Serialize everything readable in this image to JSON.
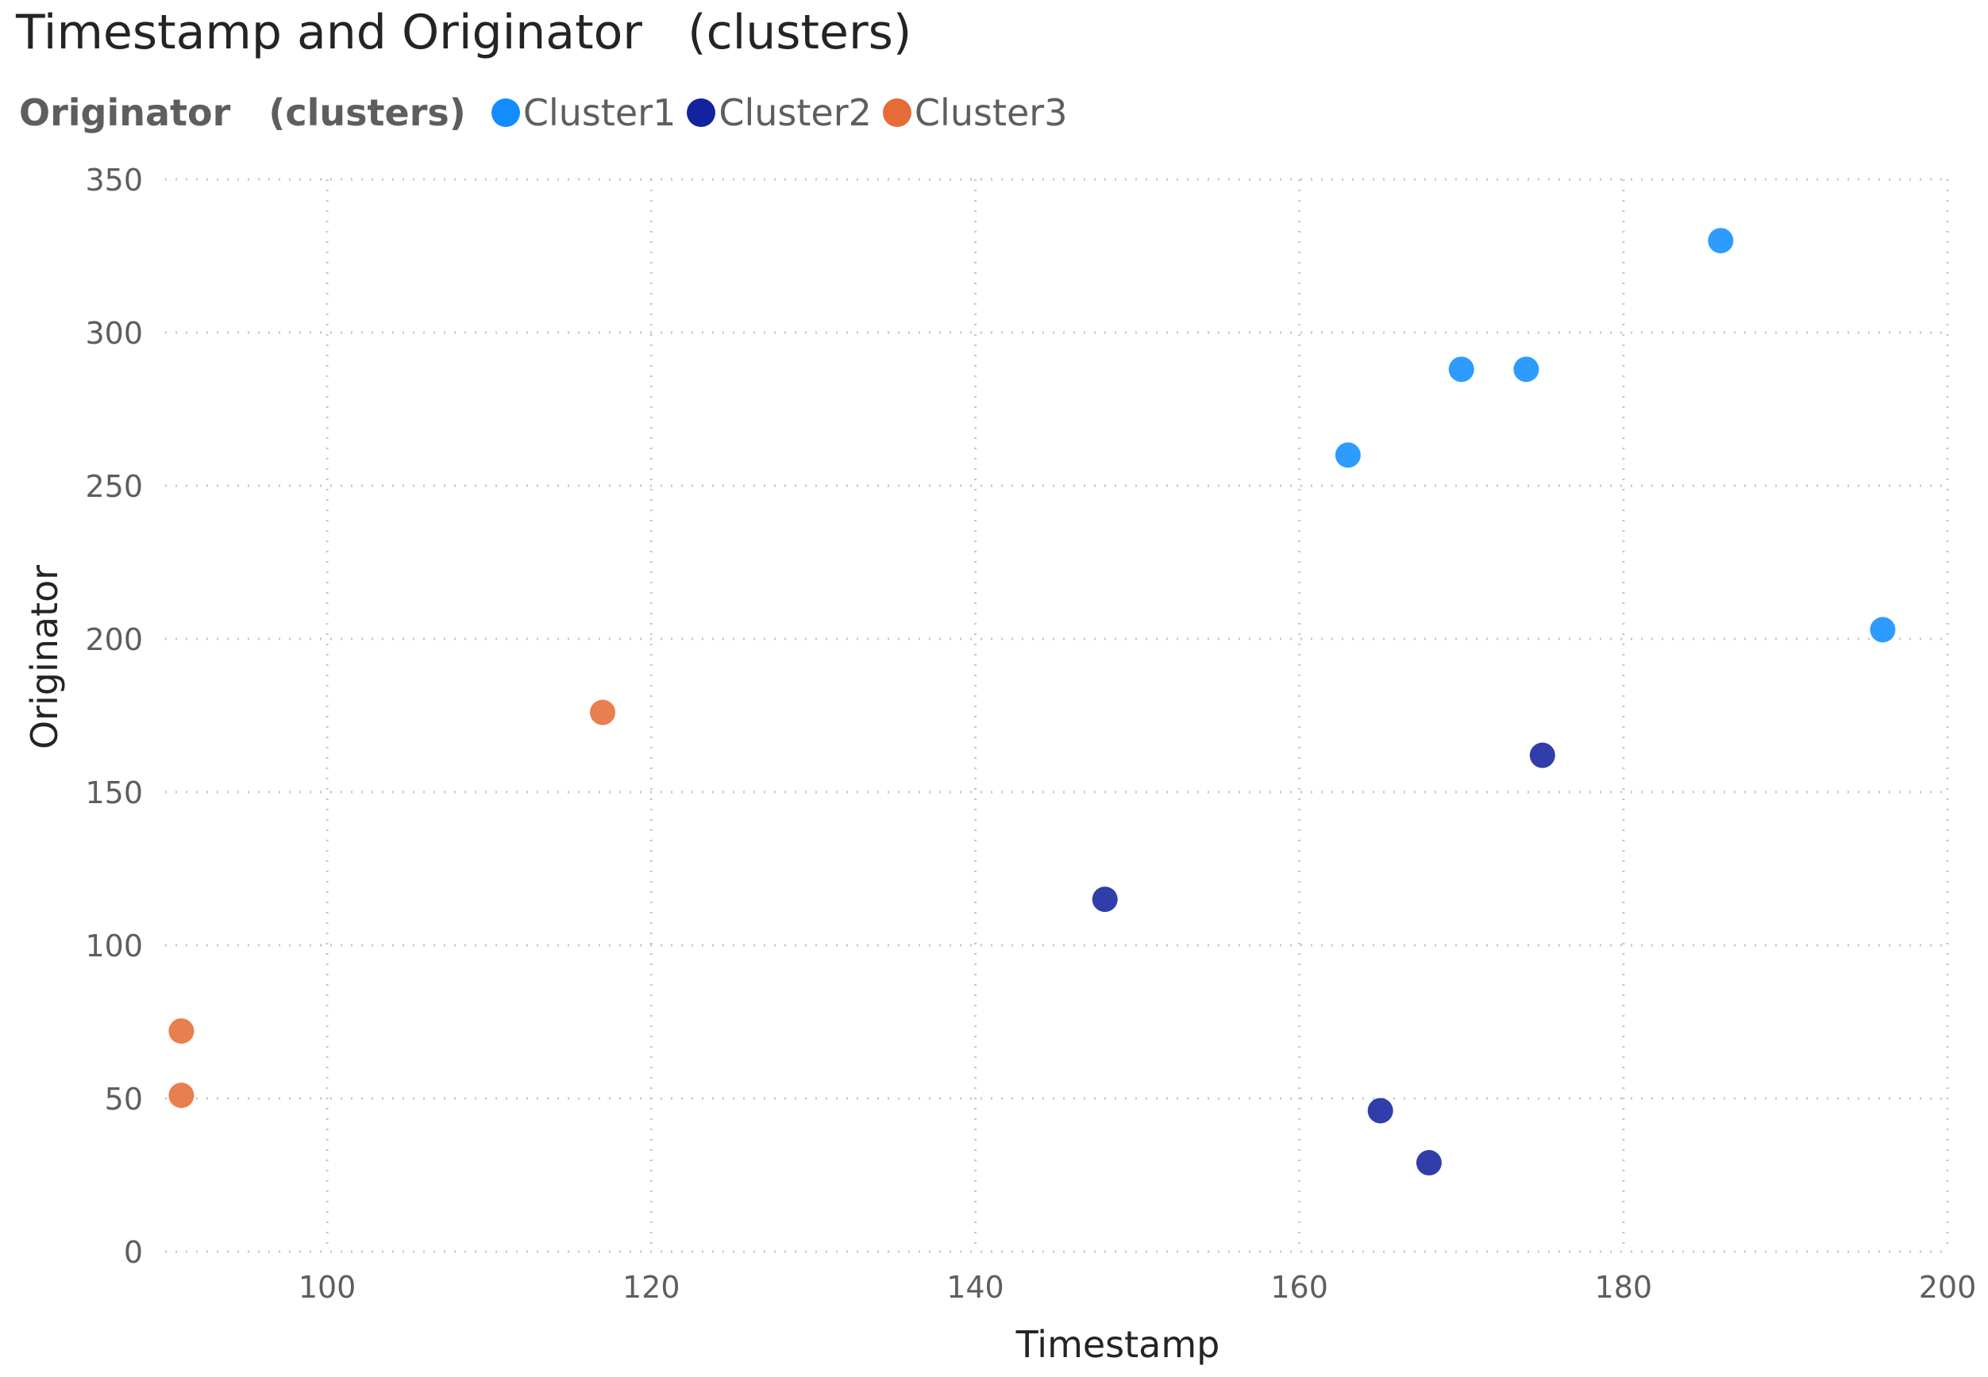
{
  "chart_data": {
    "type": "scatter",
    "title": "Timestamp and Originator   (clusters)",
    "xlabel": "Timestamp",
    "ylabel": "Originator",
    "xlim": [
      90,
      200
    ],
    "ylim": [
      0,
      350
    ],
    "xticks": [
      100,
      120,
      140,
      160,
      180,
      200
    ],
    "yticks": [
      0,
      50,
      100,
      150,
      200,
      250,
      300,
      350
    ],
    "grid": true,
    "legend_title": "Originator   (clusters)",
    "legend_position": "top-left",
    "series": [
      {
        "name": "Cluster1",
        "color": "#118dff",
        "points": [
          {
            "x": 163,
            "y": 260
          },
          {
            "x": 170,
            "y": 288
          },
          {
            "x": 174,
            "y": 288
          },
          {
            "x": 186,
            "y": 330
          },
          {
            "x": 196,
            "y": 203
          }
        ]
      },
      {
        "name": "Cluster2",
        "color": "#12239e",
        "points": [
          {
            "x": 148,
            "y": 115
          },
          {
            "x": 165,
            "y": 46
          },
          {
            "x": 168,
            "y": 29
          },
          {
            "x": 175,
            "y": 162
          }
        ]
      },
      {
        "name": "Cluster3",
        "color": "#e66c37",
        "points": [
          {
            "x": 91,
            "y": 72
          },
          {
            "x": 91,
            "y": 51
          },
          {
            "x": 117,
            "y": 176
          }
        ]
      }
    ]
  }
}
